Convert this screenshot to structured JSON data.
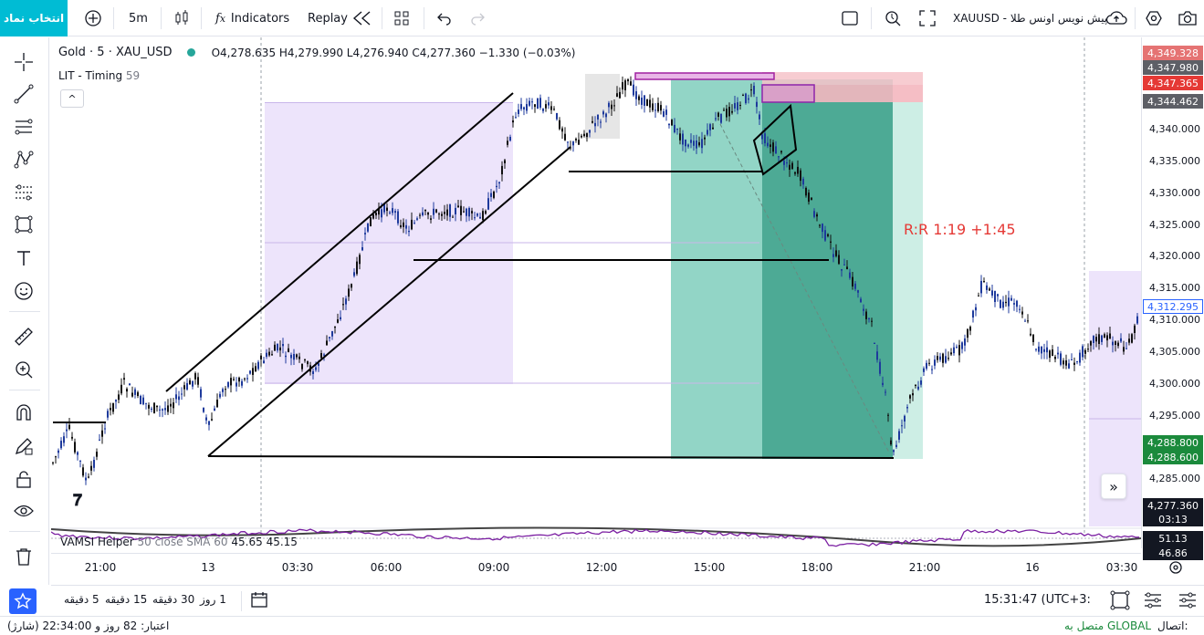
{
  "toolbar": {
    "symbol_select_label": "انتخاب نماد",
    "interval": "5m",
    "indicators_label": "Indicators",
    "replay_label": "Replay",
    "symbol_title": "XAUUSD - پیش نویس اونس طلا"
  },
  "legend": {
    "name": "Gold · 5 · XAU_USD",
    "ohlc": "O4,278.635  H4,279.990  L4,276.940  C4,277.360  −1.330 (−0.03%)",
    "indicator_name": "LIT - Timing",
    "indicator_value": "59",
    "collapse_glyph": "^"
  },
  "sub_indicator": {
    "name": "VAMSI Helper",
    "params": "50 close SMA 60",
    "v1": "45.65",
    "v2": "45.15"
  },
  "annotation": {
    "rr_text": "R:R 1:19 +1:45"
  },
  "price_axis": {
    "ticks": [
      "4,340.000",
      "4,335.000",
      "4,330.000",
      "4,325.000",
      "4,320.000",
      "4,315.000",
      "4,310.000",
      "4,305.000",
      "4,300.000",
      "4,295.000",
      "4,285.000"
    ],
    "labels": [
      {
        "text": "4,349.328",
        "color": "#e57373"
      },
      {
        "text": "4,347.980",
        "color": "#5d5f66"
      },
      {
        "text": "4,347.365",
        "color": "#e53935"
      },
      {
        "text": "4,344.462",
        "color": "#5d5f66"
      },
      {
        "text": "4,312.295",
        "color": "#ffffff"
      },
      {
        "text": "4,288.800",
        "color": "#1b8a3c"
      },
      {
        "text": "4,288.600",
        "color": "#1b8a3c"
      },
      {
        "text": "4,277.360",
        "color": "#131722"
      },
      {
        "text": "03:13",
        "color": "#131722"
      },
      {
        "text": "51.13",
        "color": "#ffffff"
      },
      {
        "text": "46.86",
        "color": "#ffffff"
      }
    ]
  },
  "time_axis": {
    "ticks": [
      "21:00",
      "13",
      "03:30",
      "06:00",
      "09:00",
      "12:00",
      "15:00",
      "18:00",
      "21:00",
      "16",
      "03:30"
    ]
  },
  "bottom": {
    "ranges": [
      "5 دقیقه",
      "15 دقیقه",
      "30 دقیقه",
      "1 روز"
    ],
    "clock": "15:31:47 (UTC+3:"
  },
  "status": {
    "connection_label": "اتصال:",
    "connection_value": "متصل به GLOBAL",
    "credit": "اعتبار: 82 روز و 22:34:00 (شارژ)"
  },
  "colors": {
    "accent": "#2962ff",
    "symbol_btn": "#00bcd4",
    "candle": "#1e3a9c",
    "purple_zone": "#ede4fb",
    "green_zone": "#5fc4ac",
    "dark_green_zone": "#2e9b82",
    "rr": "#e53935"
  }
}
